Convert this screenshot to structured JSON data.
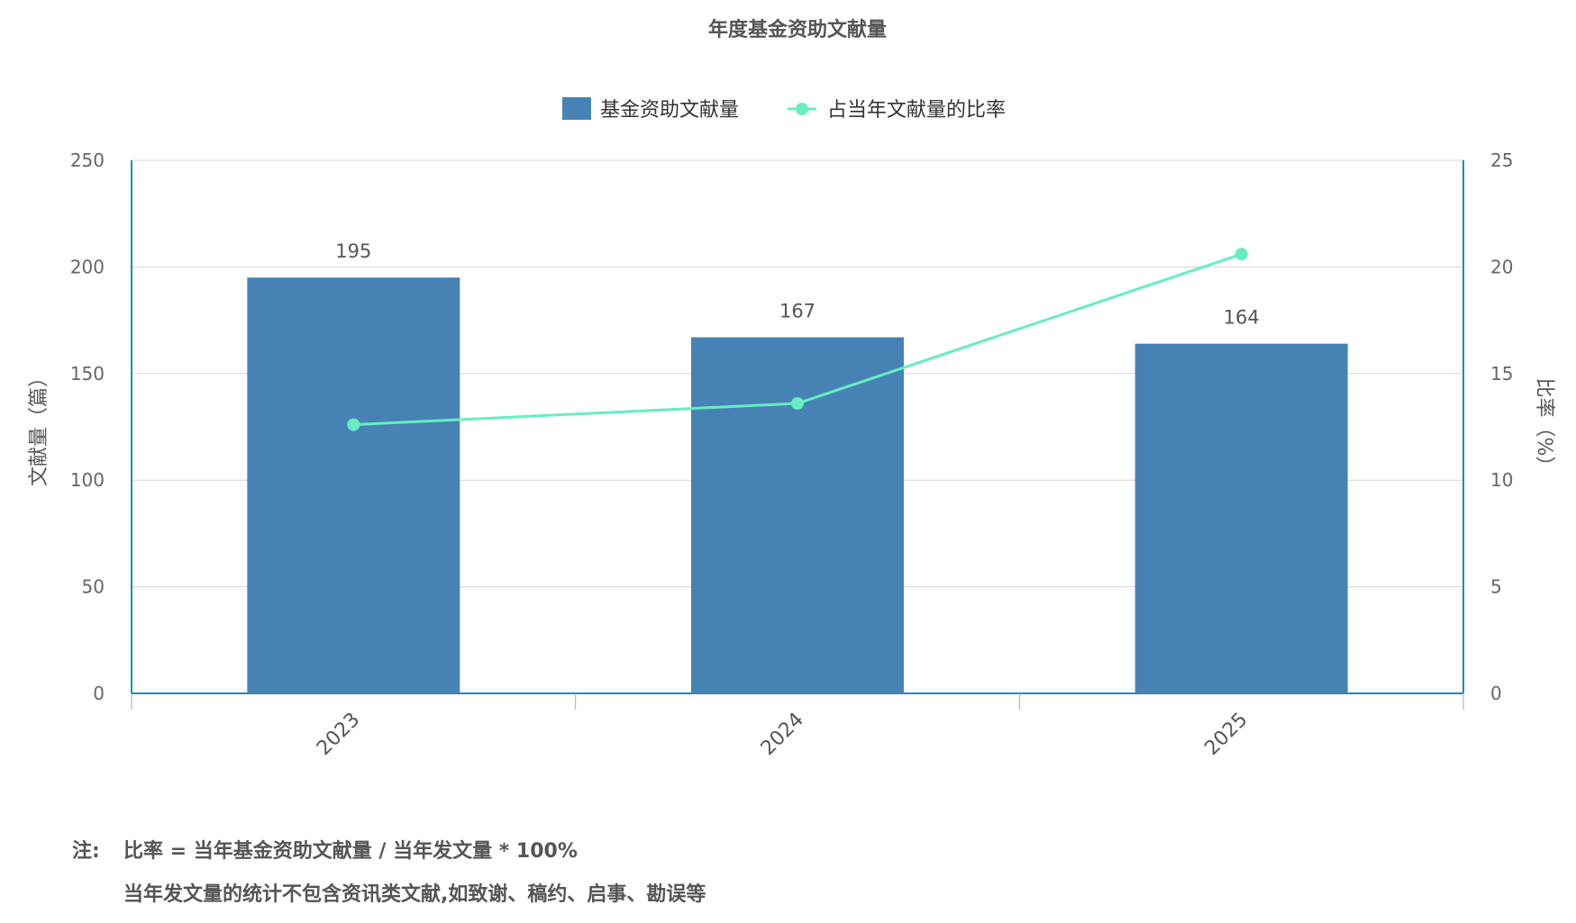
{
  "chart_data": {
    "type": "bar",
    "title": "年度基金资助文献量",
    "categories": [
      "2023",
      "2024",
      "2025"
    ],
    "series": [
      {
        "name": "基金资助文献量",
        "type": "bar",
        "axis": "left",
        "color": "#4682B4",
        "values": [
          195,
          167,
          164
        ]
      },
      {
        "name": "占当年文献量的比率",
        "type": "line",
        "axis": "right",
        "color": "#66EEC0",
        "values": [
          12.6,
          13.6,
          20.6
        ]
      }
    ],
    "ylabel": "文献量（篇）",
    "ylabel_right": "比率（%）",
    "ylim": [
      0,
      250
    ],
    "ylim_right": [
      0,
      25
    ],
    "yticks": [
      "0",
      "50",
      "100",
      "150",
      "200",
      "250"
    ],
    "yticks_right": [
      "0",
      "5",
      "10",
      "15",
      "20",
      "25"
    ],
    "data_labels": [
      "195",
      "167",
      "164"
    ],
    "grid": true,
    "legend_position": "top-center"
  },
  "notes": {
    "label": "注:",
    "line1": "比率 = 当年基金资助文献量 / 当年发文量 * 100%",
    "line2": "当年发文量的统计不包含资讯类文献,如致谢、稿约、启事、勘误等"
  }
}
